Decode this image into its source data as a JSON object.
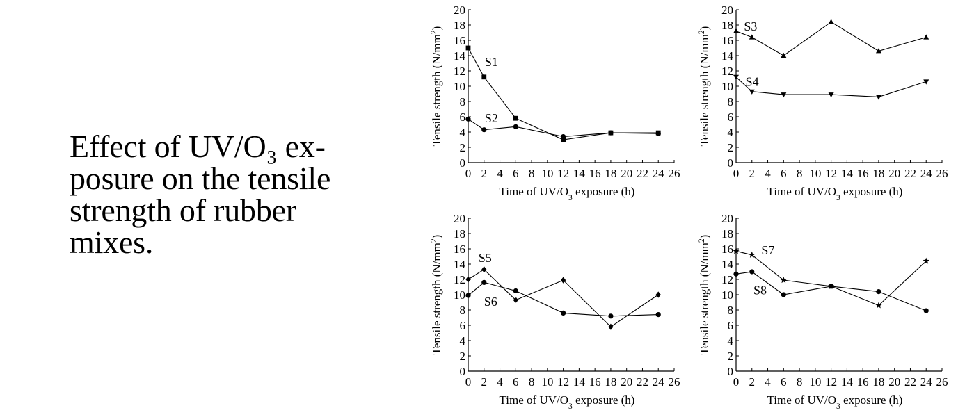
{
  "caption": {
    "lines": [
      "Effect of UV/O₃ ex-",
      "posure on the tensile",
      "strength of rubber",
      "mixes."
    ]
  },
  "chart_data": [
    {
      "type": "line",
      "xlabel": "Time of UV/O3 exposure (h)",
      "ylabel": "Tensile strength (N/mm2)",
      "xlim": [
        0,
        26
      ],
      "ylim": [
        0,
        20
      ],
      "xticks": [
        0,
        2,
        4,
        6,
        8,
        10,
        12,
        14,
        16,
        18,
        20,
        22,
        24,
        26
      ],
      "yticks": [
        0,
        2,
        4,
        6,
        8,
        10,
        12,
        14,
        16,
        18,
        20
      ],
      "series": [
        {
          "name": "S1",
          "marker": "square",
          "x": [
            0,
            2,
            6,
            12,
            18,
            24
          ],
          "y": [
            15.0,
            11.2,
            5.8,
            3.0,
            3.9,
            3.9
          ]
        },
        {
          "name": "S2",
          "marker": "circle",
          "x": [
            0,
            2,
            6,
            12,
            18,
            24
          ],
          "y": [
            5.7,
            4.3,
            4.7,
            3.4,
            3.9,
            3.8
          ]
        }
      ],
      "labels": [
        {
          "text": "S1",
          "x": 2.1,
          "y": 13.2
        },
        {
          "text": "S2",
          "x": 2.1,
          "y": 5.8
        }
      ]
    },
    {
      "type": "line",
      "xlabel": "Time of UV/O3 exposure (h)",
      "ylabel": "Tensile strength (N/mm2)",
      "xlim": [
        0,
        26
      ],
      "ylim": [
        0,
        20
      ],
      "xticks": [
        0,
        2,
        4,
        6,
        8,
        10,
        12,
        14,
        16,
        18,
        20,
        22,
        24,
        26
      ],
      "yticks": [
        0,
        2,
        4,
        6,
        8,
        10,
        12,
        14,
        16,
        18,
        20
      ],
      "series": [
        {
          "name": "S3",
          "marker": "triangle-up",
          "x": [
            0,
            2,
            6,
            12,
            18,
            24
          ],
          "y": [
            17.2,
            16.4,
            14.0,
            18.4,
            14.6,
            16.4
          ]
        },
        {
          "name": "S4",
          "marker": "triangle-down",
          "x": [
            0,
            2,
            6,
            12,
            18,
            24
          ],
          "y": [
            11.2,
            9.3,
            8.9,
            8.9,
            8.6,
            10.6
          ]
        }
      ],
      "labels": [
        {
          "text": "S3",
          "x": 1.0,
          "y": 17.8
        },
        {
          "text": "S4",
          "x": 1.2,
          "y": 10.6
        }
      ]
    },
    {
      "type": "line",
      "xlabel": "Time of UV/O3 exposure (h)",
      "ylabel": "Tensile strength (N/mm2)",
      "xlim": [
        0,
        26
      ],
      "ylim": [
        0,
        20
      ],
      "xticks": [
        0,
        2,
        4,
        6,
        8,
        10,
        12,
        14,
        16,
        18,
        20,
        22,
        24,
        26
      ],
      "yticks": [
        0,
        2,
        4,
        6,
        8,
        10,
        12,
        14,
        16,
        18,
        20
      ],
      "series": [
        {
          "name": "S5",
          "marker": "diamond",
          "x": [
            0,
            2,
            6,
            12,
            18,
            24
          ],
          "y": [
            12.0,
            13.3,
            9.3,
            11.9,
            5.8,
            10.0
          ]
        },
        {
          "name": "S6",
          "marker": "circle",
          "x": [
            0,
            2,
            6,
            12,
            18,
            24
          ],
          "y": [
            9.9,
            11.6,
            10.5,
            7.6,
            7.2,
            7.4
          ]
        }
      ],
      "labels": [
        {
          "text": "S5",
          "x": 1.3,
          "y": 14.8
        },
        {
          "text": "S6",
          "x": 2.0,
          "y": 9.1
        }
      ]
    },
    {
      "type": "line",
      "xlabel": "Time of UV/O3 exposure (h)",
      "ylabel": "Tensile strength (N/mm2)",
      "xlim": [
        0,
        26
      ],
      "ylim": [
        0,
        20
      ],
      "xticks": [
        0,
        2,
        4,
        6,
        8,
        10,
        12,
        14,
        16,
        18,
        20,
        22,
        24,
        26
      ],
      "yticks": [
        0,
        2,
        4,
        6,
        8,
        10,
        12,
        14,
        16,
        18,
        20
      ],
      "series": [
        {
          "name": "S7",
          "marker": "star",
          "x": [
            0,
            2,
            6,
            12,
            18,
            24
          ],
          "y": [
            15.7,
            15.2,
            11.9,
            11.1,
            8.6,
            14.4
          ]
        },
        {
          "name": "S8",
          "marker": "circle",
          "x": [
            0,
            2,
            6,
            12,
            18,
            24
          ],
          "y": [
            12.7,
            13.0,
            10.0,
            11.1,
            10.4,
            7.9
          ]
        }
      ],
      "labels": [
        {
          "text": "S7",
          "x": 3.2,
          "y": 15.8
        },
        {
          "text": "S8",
          "x": 2.2,
          "y": 10.6
        }
      ]
    }
  ]
}
